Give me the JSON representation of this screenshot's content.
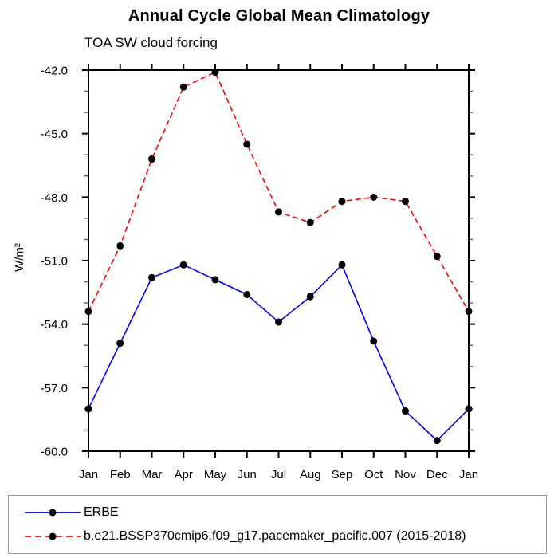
{
  "header": {
    "title": "Annual Cycle Global Mean Climatology",
    "subtitle": "TOA SW cloud forcing"
  },
  "chart_data": {
    "type": "line",
    "title": "Annual Cycle Global Mean Climatology",
    "subtitle": "TOA SW cloud forcing",
    "xlabel": "",
    "ylabel": "W/m²",
    "ylim": [
      -60.0,
      -42.0
    ],
    "ytick_interval_major": 3.0,
    "ytick_interval_minor": 1.0,
    "yticks": [
      "-42.0",
      "-45.0",
      "-48.0",
      "-51.0",
      "-54.0",
      "-57.0",
      "-60.0"
    ],
    "categories": [
      "Jan",
      "Feb",
      "Mar",
      "Apr",
      "May",
      "Jun",
      "Jul",
      "Aug",
      "Sep",
      "Oct",
      "Nov",
      "Dec",
      "Jan"
    ],
    "grid": false,
    "legend_position": "bottom",
    "marker": "black-dot",
    "series": [
      {
        "name": "ERBE",
        "color": "#0000ff",
        "style": "solid",
        "values": [
          -58.0,
          -54.9,
          -51.8,
          -51.2,
          -51.9,
          -52.6,
          -53.9,
          -52.7,
          -51.2,
          -54.8,
          -58.1,
          -59.5,
          -58.0
        ]
      },
      {
        "name": "b.e21.BSSP370cmip6.f09_g17.pacemaker_pacific.007 (2015-2018)",
        "color": "#ff0000",
        "style": "dashed",
        "values": [
          -53.4,
          -50.3,
          -46.2,
          -42.8,
          -42.1,
          -45.5,
          -48.7,
          -49.2,
          -48.2,
          -48.0,
          -48.2,
          -50.8,
          -53.4
        ]
      }
    ],
    "colors": {
      "axis": "#000000",
      "marker": "#000000",
      "erbe_line": "#0000ff",
      "model_line": "#ff0000"
    }
  }
}
